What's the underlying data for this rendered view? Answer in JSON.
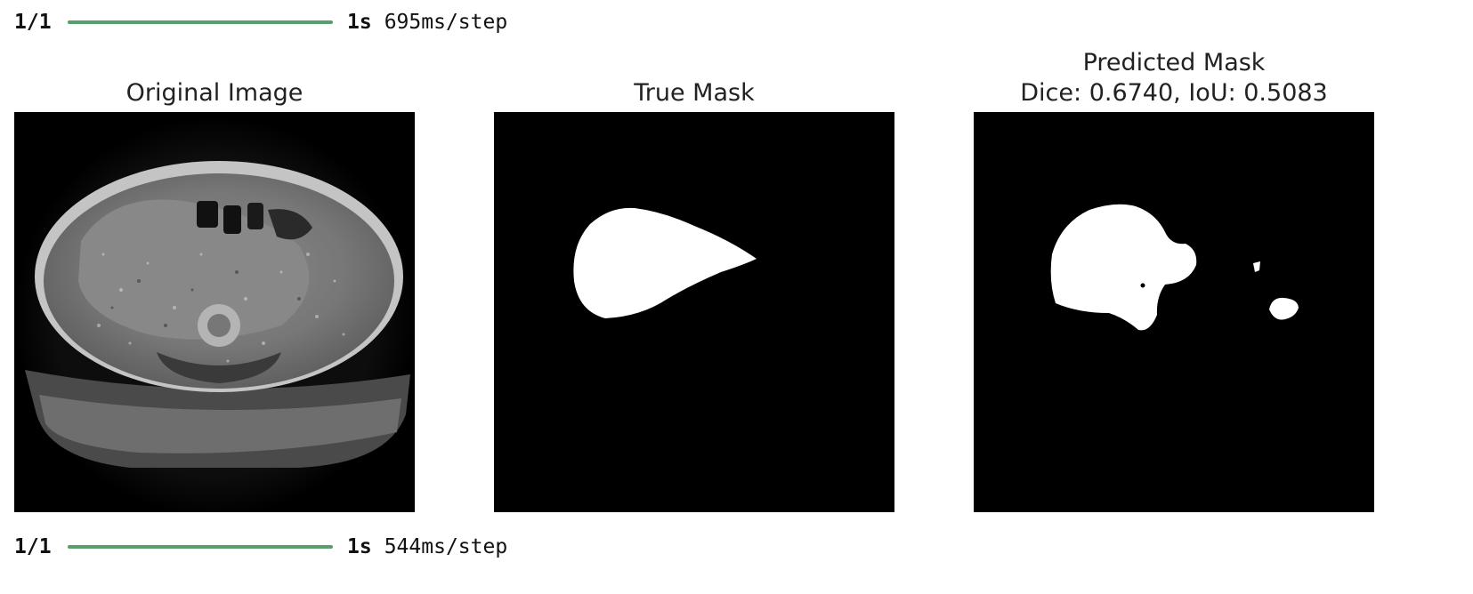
{
  "progress": [
    {
      "step": "1/1",
      "time": "1s",
      "rate": "695ms/step",
      "fraction": 1.0
    },
    {
      "step": "1/1",
      "time": "1s",
      "rate": "544ms/step",
      "fraction": 1.0
    }
  ],
  "panels": [
    {
      "title": "Original Image"
    },
    {
      "title": "True Mask"
    },
    {
      "title": "Predicted Mask",
      "subtitle": "Dice: 0.6740, IoU: 0.5083"
    }
  ],
  "colors": {
    "progress_bar": "#5a9e6a",
    "mask_fg": "#ffffff",
    "mask_bg": "#000000"
  }
}
